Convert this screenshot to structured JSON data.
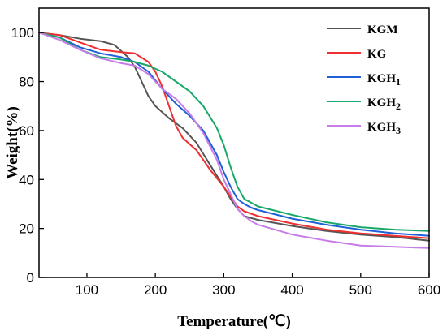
{
  "chart_data": {
    "type": "line",
    "title": "",
    "xlabel": "Temperature(℃)",
    "ylabel": "Weight(%)",
    "xlim": [
      30,
      600
    ],
    "ylim": [
      0,
      110
    ],
    "xticks": [
      100,
      200,
      300,
      400,
      500,
      600
    ],
    "yticks": [
      0,
      20,
      40,
      60,
      80,
      100
    ],
    "grid": false,
    "legend_position": "top-right",
    "series": [
      {
        "name": "KGM",
        "base": "KGM",
        "sub": "",
        "color": "#555555",
        "x": [
          30,
          60,
          90,
          120,
          140,
          160,
          170,
          180,
          190,
          200,
          220,
          240,
          260,
          280,
          300,
          310,
          320,
          330,
          350,
          400,
          450,
          500,
          550,
          600
        ],
        "y": [
          100,
          99,
          97.5,
          96.5,
          95,
          90,
          86,
          80,
          74,
          70,
          65,
          61,
          55,
          46,
          37,
          32,
          28,
          25,
          23.5,
          21,
          19,
          17.5,
          16.5,
          15
        ]
      },
      {
        "name": "KG",
        "base": "KG",
        "sub": "",
        "color": "#f03030",
        "x": [
          30,
          60,
          90,
          120,
          150,
          170,
          190,
          200,
          210,
          220,
          230,
          240,
          260,
          280,
          300,
          310,
          320,
          330,
          350,
          400,
          450,
          500,
          550,
          600
        ],
        "y": [
          100,
          99,
          96,
          93,
          92,
          91.5,
          88,
          84,
          78,
          70,
          62,
          57,
          52,
          44,
          37,
          33,
          29,
          27,
          25,
          22,
          19.5,
          18,
          17,
          16
        ]
      },
      {
        "name": "KGH1",
        "base": "KGH",
        "sub": "1",
        "color": "#1f5fd8",
        "x": [
          30,
          60,
          90,
          120,
          150,
          170,
          190,
          210,
          230,
          250,
          270,
          290,
          300,
          310,
          320,
          330,
          340,
          350,
          400,
          450,
          500,
          550,
          600
        ],
        "y": [
          100,
          98,
          94,
          91.5,
          90,
          88,
          84,
          77,
          71,
          66,
          60,
          50,
          43,
          37,
          32,
          30,
          28.5,
          27.5,
          24,
          21.5,
          19.5,
          18,
          17
        ]
      },
      {
        "name": "KGH2",
        "base": "KGH",
        "sub": "2",
        "color": "#1aa86a",
        "x": [
          30,
          60,
          90,
          120,
          150,
          170,
          190,
          210,
          230,
          250,
          270,
          290,
          300,
          310,
          320,
          330,
          340,
          350,
          400,
          450,
          500,
          550,
          600
        ],
        "y": [
          100,
          98,
          93,
          90,
          89,
          88,
          86.5,
          84,
          80,
          76,
          70,
          61,
          54,
          45,
          37,
          32,
          30.5,
          29,
          25.5,
          22.5,
          20.5,
          19.5,
          19
        ]
      },
      {
        "name": "KGH3",
        "base": "KGH",
        "sub": "3",
        "color": "#c77ce8",
        "x": [
          30,
          60,
          90,
          120,
          150,
          170,
          190,
          210,
          230,
          250,
          270,
          290,
          300,
          310,
          320,
          330,
          340,
          350,
          400,
          450,
          500,
          550,
          600
        ],
        "y": [
          100,
          97,
          93,
          89.5,
          87.5,
          86.5,
          83,
          77,
          73,
          67,
          59,
          48,
          40,
          34,
          28,
          25,
          23,
          21.5,
          17.5,
          15,
          13,
          12.5,
          12
        ]
      }
    ]
  }
}
